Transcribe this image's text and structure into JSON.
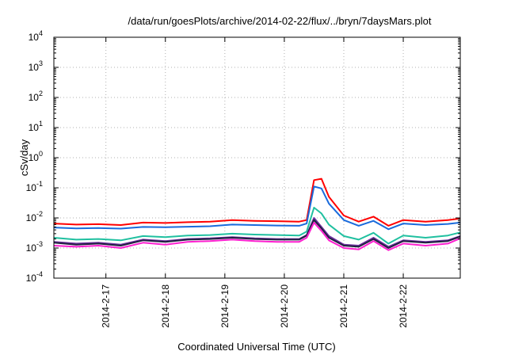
{
  "chart_data": {
    "type": "line",
    "title": "/data/run/goesPlots/archive/2014-02-22/flux/../bryn/7daysMars.plot",
    "xlabel": "Coordinated Universal Time (UTC)",
    "ylabel": "cSv/day",
    "y_scale": "log",
    "ylim": [
      0.0001,
      10000
    ],
    "y_ticks": [
      {
        "base": "10",
        "exp": "4"
      },
      {
        "base": "10",
        "exp": "3"
      },
      {
        "base": "10",
        "exp": "2"
      },
      {
        "base": "10",
        "exp": "1"
      },
      {
        "base": "10",
        "exp": "0"
      },
      {
        "base": "10",
        "exp": "-1"
      },
      {
        "base": "10",
        "exp": "-2"
      },
      {
        "base": "10",
        "exp": "-3"
      },
      {
        "base": "10",
        "exp": "-4"
      }
    ],
    "xlim": [
      "2014-02-16 03:00",
      "2014-02-22 23:00"
    ],
    "x_ticks": [
      "2014-2-17",
      "2014-2-18",
      "2014-2-19",
      "2014-2-20",
      "2014-2-21",
      "2014-2-22"
    ],
    "grid": true,
    "x": [
      "2014-02-16 03:00",
      "2014-02-16 12:00",
      "2014-02-16 21:00",
      "2014-02-17 06:00",
      "2014-02-17 15:00",
      "2014-02-18 00:00",
      "2014-02-18 09:00",
      "2014-02-18 18:00",
      "2014-02-19 03:00",
      "2014-02-19 12:00",
      "2014-02-19 21:00",
      "2014-02-20 06:00",
      "2014-02-20 09:00",
      "2014-02-20 12:00",
      "2014-02-20 15:00",
      "2014-02-20 18:00",
      "2014-02-21 00:00",
      "2014-02-21 06:00",
      "2014-02-21 12:00",
      "2014-02-21 18:00",
      "2014-02-22 00:00",
      "2014-02-22 09:00",
      "2014-02-22 18:00",
      "2014-02-22 23:00"
    ],
    "series": [
      {
        "color": "#ff0000",
        "values": [
          0.0065,
          0.006,
          0.0062,
          0.0058,
          0.007,
          0.0068,
          0.0072,
          0.0075,
          0.0085,
          0.008,
          0.0078,
          0.0075,
          0.0085,
          0.18,
          0.2,
          0.05,
          0.012,
          0.0075,
          0.011,
          0.0055,
          0.0085,
          0.0075,
          0.0085,
          0.0095
        ]
      },
      {
        "color": "#1a6bdc",
        "values": [
          0.0048,
          0.0045,
          0.0046,
          0.0044,
          0.005,
          0.0049,
          0.0051,
          0.0053,
          0.006,
          0.0058,
          0.0056,
          0.0055,
          0.0065,
          0.11,
          0.095,
          0.03,
          0.0085,
          0.0055,
          0.008,
          0.0042,
          0.0065,
          0.0058,
          0.0063,
          0.007
        ]
      },
      {
        "color": "#20c0a0",
        "values": [
          0.0022,
          0.0019,
          0.002,
          0.0018,
          0.0025,
          0.0023,
          0.0026,
          0.0027,
          0.003,
          0.0028,
          0.0027,
          0.0026,
          0.0035,
          0.022,
          0.014,
          0.006,
          0.0025,
          0.0019,
          0.0032,
          0.0014,
          0.0026,
          0.0022,
          0.0026,
          0.0033
        ]
      },
      {
        "color": "#7030a0",
        "values": [
          0.0016,
          0.0014,
          0.0015,
          0.0013,
          0.0019,
          0.0017,
          0.002,
          0.0021,
          0.0023,
          0.0021,
          0.002,
          0.002,
          0.0027,
          0.01,
          0.005,
          0.0025,
          0.0013,
          0.0012,
          0.0022,
          0.0011,
          0.0018,
          0.0016,
          0.0018,
          0.0025
        ]
      },
      {
        "color": "#202040",
        "values": [
          0.0015,
          0.0013,
          0.0014,
          0.0012,
          0.0018,
          0.0016,
          0.0019,
          0.002,
          0.0022,
          0.002,
          0.0019,
          0.0019,
          0.0026,
          0.0085,
          0.0045,
          0.0022,
          0.0012,
          0.0011,
          0.002,
          0.001,
          0.0017,
          0.0015,
          0.0017,
          0.0024
        ]
      },
      {
        "color": "#ff20d0",
        "values": [
          0.0012,
          0.0011,
          0.0012,
          0.001,
          0.0015,
          0.0013,
          0.0016,
          0.0017,
          0.0019,
          0.0017,
          0.0016,
          0.0016,
          0.0022,
          0.007,
          0.0037,
          0.0018,
          0.001,
          0.0009,
          0.0017,
          0.00085,
          0.0014,
          0.0012,
          0.0014,
          0.0021
        ]
      }
    ]
  }
}
